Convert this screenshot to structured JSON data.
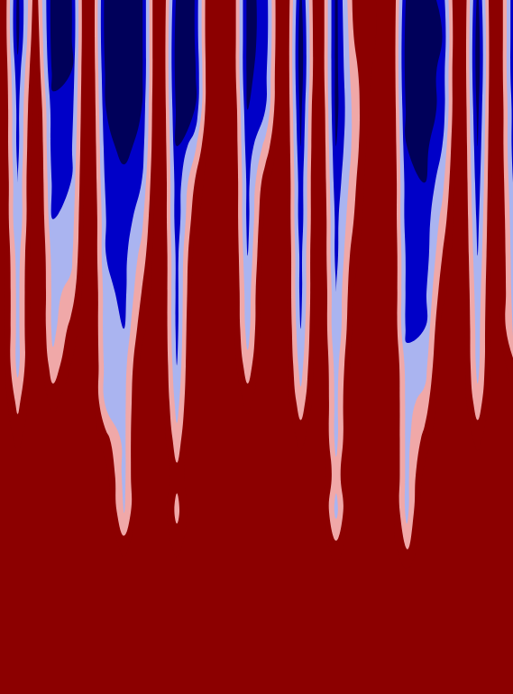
{
  "chart_data": {
    "type": "contour",
    "tick_labels": false,
    "zlim": [
      0,
      1
    ],
    "levels": [
      0.15,
      0.3,
      0.45,
      0.6,
      0.75
    ],
    "colors": [
      "#00005a",
      "#0000c8",
      "#aab4f0",
      "#f0a8a8",
      "#ee1c1c",
      "#8c0000"
    ],
    "z": [
      [
        0.9,
        0.1,
        0.7,
        0.05,
        0.1,
        0.9,
        0.05,
        0.05,
        0.1,
        0.9,
        0.1,
        0.15,
        0.9,
        0.85,
        0.1,
        0.2,
        0.9,
        0.1,
        0.85,
        0.1,
        0.65,
        0.7,
        0.9,
        0.1,
        0.05,
        0.2,
        0.9,
        0.1,
        0.9,
        0.2
      ],
      [
        0.9,
        0.1,
        0.75,
        0.05,
        0.1,
        0.9,
        0.05,
        0.05,
        0.1,
        0.9,
        0.05,
        0.15,
        0.9,
        0.85,
        0.1,
        0.2,
        0.9,
        0.05,
        0.85,
        0.1,
        0.6,
        0.7,
        0.9,
        0.05,
        0.05,
        0.15,
        0.9,
        0.05,
        0.9,
        0.2
      ],
      [
        0.9,
        0.2,
        0.8,
        0.1,
        0.15,
        0.9,
        0.1,
        0.05,
        0.1,
        0.9,
        0.05,
        0.1,
        0.9,
        0.85,
        0.1,
        0.25,
        0.9,
        0.05,
        0.85,
        0.1,
        0.55,
        0.75,
        0.9,
        0.05,
        0.05,
        0.2,
        0.9,
        0.05,
        0.9,
        0.2
      ],
      [
        0.9,
        0.25,
        0.85,
        0.2,
        0.2,
        0.9,
        0.15,
        0.05,
        0.15,
        0.9,
        0.1,
        0.15,
        0.9,
        0.9,
        0.15,
        0.3,
        0.9,
        0.1,
        0.9,
        0.1,
        0.5,
        0.8,
        0.9,
        0.1,
        0.05,
        0.2,
        0.9,
        0.1,
        0.9,
        0.25
      ],
      [
        0.9,
        0.25,
        0.9,
        0.2,
        0.25,
        0.9,
        0.2,
        0.1,
        0.2,
        0.9,
        0.15,
        0.4,
        0.9,
        0.9,
        0.2,
        0.5,
        0.9,
        0.15,
        0.9,
        0.15,
        0.5,
        0.85,
        0.9,
        0.15,
        0.1,
        0.3,
        0.9,
        0.15,
        0.9,
        0.25
      ],
      [
        0.9,
        0.3,
        0.9,
        0.25,
        0.3,
        0.9,
        0.25,
        0.2,
        0.3,
        0.9,
        0.2,
        0.6,
        0.9,
        0.9,
        0.25,
        0.7,
        0.9,
        0.2,
        0.9,
        0.2,
        0.55,
        0.9,
        0.9,
        0.2,
        0.15,
        0.4,
        0.9,
        0.2,
        0.9,
        0.3
      ],
      [
        0.9,
        0.3,
        0.9,
        0.3,
        0.35,
        0.9,
        0.3,
        0.2,
        0.4,
        0.9,
        0.2,
        0.7,
        0.9,
        0.9,
        0.25,
        0.8,
        0.9,
        0.2,
        0.9,
        0.25,
        0.6,
        0.9,
        0.9,
        0.2,
        0.2,
        0.5,
        0.9,
        0.25,
        0.9,
        0.35
      ],
      [
        0.9,
        0.38,
        0.9,
        0.38,
        0.4,
        0.9,
        0.3,
        0.25,
        0.5,
        0.9,
        0.25,
        0.8,
        0.9,
        0.9,
        0.3,
        0.85,
        0.9,
        0.25,
        0.9,
        0.25,
        0.7,
        0.9,
        0.9,
        0.25,
        0.2,
        0.6,
        0.9,
        0.3,
        0.9,
        0.38
      ],
      [
        0.9,
        0.4,
        0.9,
        0.4,
        0.5,
        0.9,
        0.35,
        0.25,
        0.6,
        0.9,
        0.25,
        0.85,
        0.9,
        0.9,
        0.35,
        0.9,
        0.9,
        0.25,
        0.9,
        0.3,
        0.75,
        0.9,
        0.9,
        0.25,
        0.25,
        0.7,
        0.9,
        0.35,
        0.9,
        0.4
      ],
      [
        0.9,
        0.4,
        0.9,
        0.4,
        0.65,
        0.9,
        0.35,
        0.3,
        0.7,
        0.9,
        0.25,
        0.9,
        0.9,
        0.9,
        0.38,
        0.9,
        0.9,
        0.3,
        0.9,
        0.3,
        0.8,
        0.9,
        0.9,
        0.25,
        0.3,
        0.8,
        0.9,
        0.38,
        0.9,
        0.4
      ],
      [
        0.9,
        0.4,
        0.9,
        0.5,
        0.75,
        0.9,
        0.38,
        0.38,
        0.8,
        0.9,
        0.3,
        0.9,
        0.9,
        0.9,
        0.5,
        0.9,
        0.9,
        0.38,
        0.9,
        0.38,
        0.85,
        0.9,
        0.9,
        0.38,
        0.38,
        0.85,
        0.9,
        0.4,
        0.9,
        0.65
      ],
      [
        0.9,
        0.55,
        0.9,
        0.7,
        0.85,
        0.9,
        0.4,
        0.4,
        0.85,
        0.9,
        0.38,
        0.9,
        0.9,
        0.9,
        0.7,
        0.9,
        0.9,
        0.5,
        0.9,
        0.4,
        0.9,
        0.9,
        0.9,
        0.4,
        0.5,
        0.9,
        0.9,
        0.5,
        0.9,
        0.8
      ],
      [
        0.9,
        0.7,
        0.9,
        0.85,
        0.9,
        0.9,
        0.65,
        0.4,
        0.9,
        0.9,
        0.5,
        0.9,
        0.9,
        0.9,
        0.85,
        0.9,
        0.9,
        0.7,
        0.9,
        0.4,
        0.9,
        0.9,
        0.9,
        0.4,
        0.65,
        0.9,
        0.9,
        0.7,
        0.9,
        0.9
      ],
      [
        0.9,
        0.85,
        0.9,
        0.9,
        0.9,
        0.9,
        0.8,
        0.4,
        0.9,
        0.9,
        0.65,
        0.9,
        0.9,
        0.9,
        0.9,
        0.9,
        0.9,
        0.85,
        0.9,
        0.5,
        0.9,
        0.9,
        0.9,
        0.4,
        0.8,
        0.9,
        0.9,
        0.85,
        0.9,
        0.9
      ],
      [
        0.9,
        0.9,
        0.9,
        0.9,
        0.9,
        0.9,
        0.9,
        0.4,
        0.9,
        0.9,
        0.55,
        0.9,
        0.9,
        0.9,
        0.9,
        0.9,
        0.9,
        0.9,
        0.9,
        0.4,
        0.9,
        0.9,
        0.9,
        0.4,
        0.9,
        0.9,
        0.9,
        0.9,
        0.9,
        0.9
      ],
      [
        0.9,
        0.9,
        0.9,
        0.9,
        0.9,
        0.9,
        0.9,
        0.7,
        0.9,
        0.9,
        0.7,
        0.9,
        0.9,
        0.9,
        0.9,
        0.9,
        0.9,
        0.9,
        0.9,
        0.65,
        0.9,
        0.9,
        0.9,
        0.55,
        0.9,
        0.9,
        0.9,
        0.9,
        0.9,
        0.9
      ],
      [
        0.9,
        0.9,
        0.9,
        0.9,
        0.9,
        0.9,
        0.9,
        0.9,
        0.9,
        0.9,
        0.9,
        0.9,
        0.9,
        0.9,
        0.9,
        0.9,
        0.9,
        0.9,
        0.9,
        0.9,
        0.9,
        0.9,
        0.9,
        0.9,
        0.9,
        0.9,
        0.9,
        0.9,
        0.9,
        0.9
      ],
      [
        0.9,
        0.9,
        0.9,
        0.9,
        0.9,
        0.9,
        0.9,
        0.9,
        0.9,
        0.9,
        0.9,
        0.9,
        0.9,
        0.9,
        0.9,
        0.9,
        0.9,
        0.9,
        0.9,
        0.9,
        0.9,
        0.9,
        0.9,
        0.9,
        0.9,
        0.9,
        0.9,
        0.9,
        0.9,
        0.9
      ],
      [
        0.9,
        0.9,
        0.9,
        0.9,
        0.9,
        0.9,
        0.9,
        0.9,
        0.9,
        0.9,
        0.9,
        0.9,
        0.9,
        0.9,
        0.9,
        0.9,
        0.9,
        0.9,
        0.9,
        0.9,
        0.9,
        0.9,
        0.9,
        0.9,
        0.9,
        0.9,
        0.9,
        0.9,
        0.9,
        0.9
      ],
      [
        0.9,
        0.9,
        0.9,
        0.9,
        0.9,
        0.9,
        0.9,
        0.9,
        0.9,
        0.9,
        0.9,
        0.9,
        0.9,
        0.9,
        0.9,
        0.9,
        0.9,
        0.9,
        0.9,
        0.9,
        0.9,
        0.9,
        0.9,
        0.9,
        0.9,
        0.9,
        0.9,
        0.9,
        0.9,
        0.9
      ]
    ]
  }
}
